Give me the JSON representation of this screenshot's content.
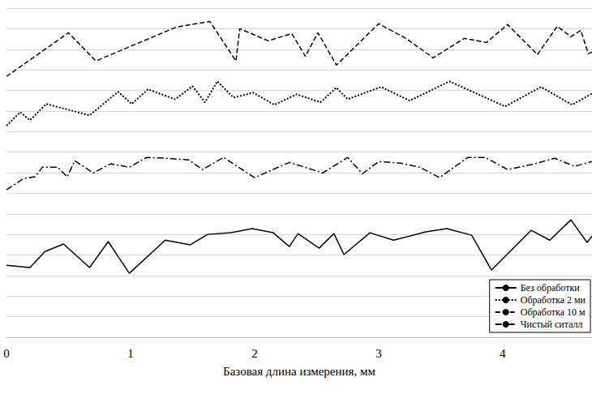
{
  "chart_data": {
    "type": "line",
    "xlabel": "Базовая длина измерения, мм",
    "xlim": [
      0,
      4.72
    ],
    "xticks": [
      0,
      1,
      2,
      3,
      4
    ],
    "ylim": [
      0,
      16
    ],
    "yticks": [
      0,
      1,
      2,
      3,
      4,
      5,
      6,
      7,
      8,
      9,
      10,
      11,
      12,
      13,
      14,
      15,
      16
    ],
    "grid": true,
    "tick_labels": "x",
    "legend": "lower right",
    "series": [
      {
        "name": "Без обработки",
        "color": "#000000",
        "line_style": "solid",
        "marker": "none",
        "x": [
          0,
          0.19,
          0.31,
          0.46,
          0.67,
          0.82,
          0.99,
          1.28,
          1.48,
          1.62,
          1.81,
          1.98,
          2.15,
          2.28,
          2.35,
          2.52,
          2.64,
          2.72,
          2.93,
          3.12,
          3.38,
          3.55,
          3.75,
          3.91,
          4.23,
          4.38,
          4.55,
          4.68,
          4.72
        ],
        "values": [
          3.5,
          3.39,
          4.17,
          4.53,
          3.39,
          4.65,
          3.11,
          4.72,
          4.49,
          5.0,
          5.08,
          5.28,
          5.08,
          4.41,
          5.04,
          4.33,
          5.04,
          4.02,
          5.08,
          4.72,
          5.12,
          5.28,
          4.96,
          3.27,
          5.2,
          4.72,
          5.71,
          4.61,
          4.92
        ]
      },
      {
        "name": "Обработка 2 ми",
        "color": "#000000",
        "line_style": "dotted",
        "marker": "none",
        "x": [
          0,
          0.11,
          0.19,
          0.32,
          0.67,
          0.9,
          1.01,
          1.14,
          1.36,
          1.5,
          1.6,
          1.7,
          1.83,
          1.99,
          2.16,
          2.34,
          2.53,
          2.66,
          2.75,
          3.02,
          3.25,
          3.57,
          4.02,
          4.31,
          4.56,
          4.72
        ],
        "values": [
          10.28,
          10.94,
          10.55,
          11.34,
          10.79,
          11.93,
          11.34,
          12.05,
          11.57,
          12.2,
          11.42,
          12.44,
          11.65,
          11.89,
          11.3,
          11.81,
          11.42,
          12.13,
          11.57,
          12.17,
          11.5,
          12.44,
          11.22,
          12.17,
          11.3,
          11.85
        ]
      },
      {
        "name": "Обработка 10 м",
        "color": "#000000",
        "line_style": "dashed",
        "marker": "none",
        "x": [
          0,
          0.5,
          0.72,
          1.37,
          1.64,
          1.85,
          1.88,
          2.11,
          2.3,
          2.41,
          2.51,
          2.66,
          3.0,
          3.22,
          3.44,
          3.69,
          3.87,
          4.04,
          4.28,
          4.44,
          4.55,
          4.63,
          4.69,
          4.72
        ],
        "values": [
          12.68,
          14.8,
          13.43,
          15.08,
          15.35,
          13.43,
          15.0,
          14.41,
          14.76,
          13.66,
          14.8,
          13.23,
          15.24,
          14.53,
          13.58,
          14.53,
          14.33,
          15.2,
          13.74,
          15.12,
          14.61,
          14.92,
          13.78,
          13.86
        ]
      },
      {
        "name": "Чистый ситалл",
        "color": "#000000",
        "line_style": "dashdot",
        "marker": "none",
        "x": [
          0,
          0.14,
          0.23,
          0.29,
          0.41,
          0.49,
          0.55,
          0.7,
          0.84,
          0.99,
          1.13,
          1.29,
          1.47,
          1.58,
          1.75,
          2.0,
          2.28,
          2.55,
          2.75,
          2.87,
          3.0,
          3.18,
          3.33,
          3.49,
          3.72,
          3.86,
          4.04,
          4.23,
          4.42,
          4.58,
          4.72
        ],
        "values": [
          7.17,
          7.72,
          7.8,
          8.27,
          8.27,
          7.8,
          8.58,
          7.99,
          8.43,
          8.27,
          8.74,
          8.7,
          8.62,
          8.15,
          8.74,
          7.76,
          8.5,
          7.99,
          8.74,
          7.95,
          8.54,
          8.46,
          8.27,
          7.76,
          8.74,
          8.74,
          8.15,
          8.39,
          8.7,
          8.31,
          8.54
        ]
      }
    ]
  }
}
